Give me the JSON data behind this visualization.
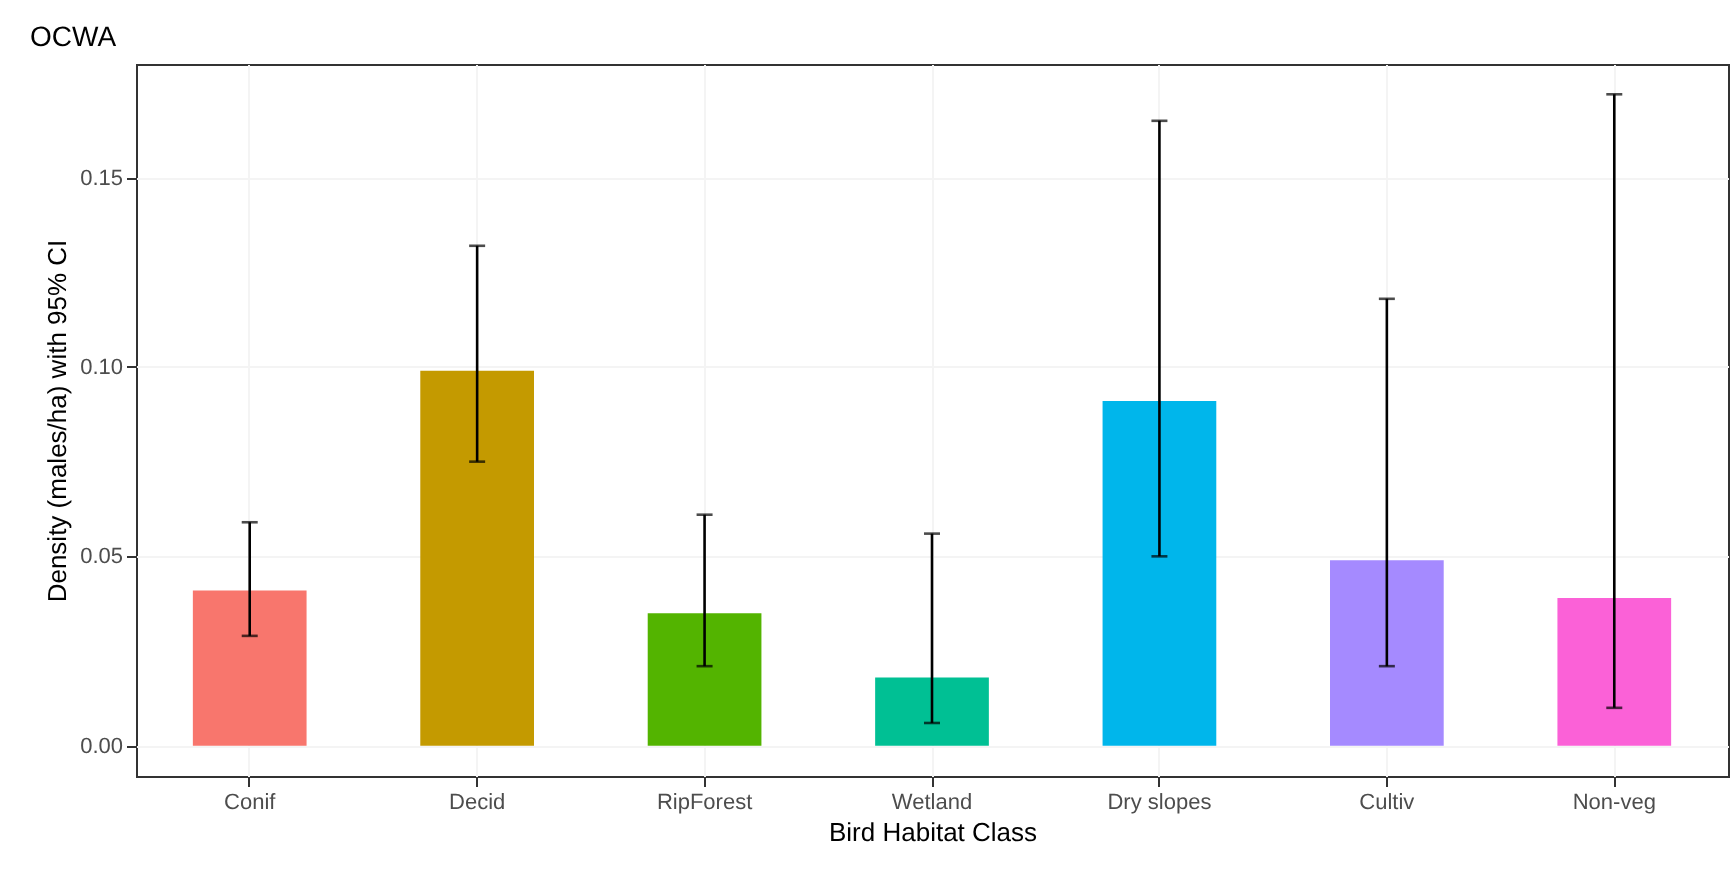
{
  "chart_data": {
    "type": "bar",
    "title": "OCWA",
    "xlabel": "Bird Habitat Class",
    "ylabel": "Density (males/ha) with 95% CI",
    "categories": [
      "Conif",
      "Decid",
      "RipForest",
      "Wetland",
      "Dry slopes",
      "Cultiv",
      "Non-veg"
    ],
    "values": [
      0.041,
      0.099,
      0.035,
      0.018,
      0.091,
      0.049,
      0.039
    ],
    "colors": [
      "#f8766d",
      "#c49a00",
      "#53b400",
      "#00c094",
      "#00b6eb",
      "#a58aff",
      "#fb61d7"
    ],
    "errors": [
      [
        0.029,
        0.059
      ],
      [
        0.075,
        0.132
      ],
      [
        0.021,
        0.061
      ],
      [
        0.006,
        0.056
      ],
      [
        0.05,
        0.165
      ],
      [
        0.021,
        0.118
      ],
      [
        0.01,
        0.172
      ]
    ],
    "ylim": [
      -0.008,
      0.18
    ],
    "yticks": [
      {
        "value": 0,
        "label": "0.00"
      },
      0.05,
      {
        "value": 0.1,
        "label": "0.10"
      },
      0.15
    ],
    "grid": true
  }
}
